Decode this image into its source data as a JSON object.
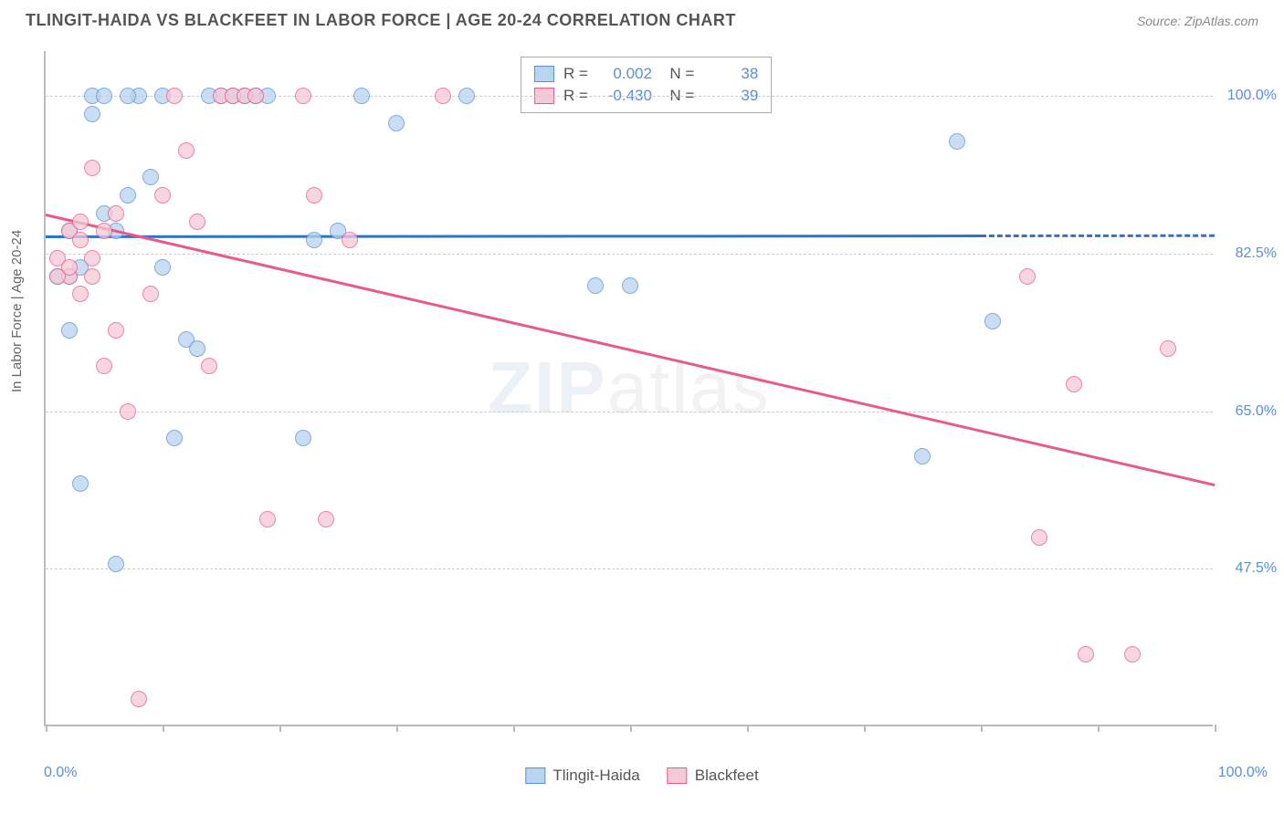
{
  "title": "TLINGIT-HAIDA VS BLACKFEET IN LABOR FORCE | AGE 20-24 CORRELATION CHART",
  "source": "Source: ZipAtlas.com",
  "yaxis_title": "In Labor Force | Age 20-24",
  "watermark": {
    "bold": "ZIP",
    "light": "atlas"
  },
  "chart": {
    "type": "scatter",
    "xlim": [
      0,
      100
    ],
    "ylim": [
      30,
      105
    ],
    "x_ticks": [
      0,
      10,
      20,
      30,
      40,
      50,
      60,
      70,
      80,
      90,
      100
    ],
    "x_min_label": "0.0%",
    "x_max_label": "100.0%",
    "y_gridlines": [
      47.5,
      65.0,
      82.5,
      100.0
    ],
    "y_tick_labels": [
      "47.5%",
      "65.0%",
      "82.5%",
      "100.0%"
    ],
    "grid_color": "#cccccc",
    "background_color": "#ffffff",
    "marker_radius": 9,
    "marker_opacity": 0.75,
    "series": [
      {
        "name": "Tlingit-Haida",
        "fill": "#b9d4f0",
        "stroke": "#5a8fd6",
        "R": "0.002",
        "N": "38",
        "trend": {
          "x1": 0,
          "y1": 84.5,
          "x2": 80,
          "y2": 84.6,
          "dash_to_x": 100,
          "color": "#2f74c7",
          "width": 3
        },
        "points": [
          {
            "x": 1,
            "y": 80
          },
          {
            "x": 2,
            "y": 85
          },
          {
            "x": 2,
            "y": 74
          },
          {
            "x": 3,
            "y": 57
          },
          {
            "x": 4,
            "y": 100
          },
          {
            "x": 4,
            "y": 98
          },
          {
            "x": 5,
            "y": 87
          },
          {
            "x": 6,
            "y": 48
          },
          {
            "x": 7,
            "y": 89
          },
          {
            "x": 8,
            "y": 100
          },
          {
            "x": 9,
            "y": 91
          },
          {
            "x": 10,
            "y": 100
          },
          {
            "x": 10,
            "y": 81
          },
          {
            "x": 11,
            "y": 62
          },
          {
            "x": 12,
            "y": 73
          },
          {
            "x": 13,
            "y": 72
          },
          {
            "x": 15,
            "y": 100
          },
          {
            "x": 16,
            "y": 100
          },
          {
            "x": 18,
            "y": 100
          },
          {
            "x": 19,
            "y": 100
          },
          {
            "x": 22,
            "y": 62
          },
          {
            "x": 23,
            "y": 84
          },
          {
            "x": 25,
            "y": 85
          },
          {
            "x": 27,
            "y": 100
          },
          {
            "x": 30,
            "y": 97
          },
          {
            "x": 47,
            "y": 79
          },
          {
            "x": 50,
            "y": 79
          },
          {
            "x": 75,
            "y": 60
          },
          {
            "x": 78,
            "y": 95
          },
          {
            "x": 81,
            "y": 75
          },
          {
            "x": 2,
            "y": 80
          },
          {
            "x": 3,
            "y": 81
          },
          {
            "x": 5,
            "y": 100
          },
          {
            "x": 6,
            "y": 85
          },
          {
            "x": 14,
            "y": 100
          },
          {
            "x": 17,
            "y": 100
          },
          {
            "x": 36,
            "y": 100
          },
          {
            "x": 7,
            "y": 100
          }
        ]
      },
      {
        "name": "Blackfeet",
        "fill": "#f6c9d6",
        "stroke": "#e85a8a",
        "R": "-0.430",
        "N": "39",
        "trend": {
          "x1": 0,
          "y1": 87,
          "x2": 100,
          "y2": 57,
          "color": "#e85a8a",
          "width": 3
        },
        "points": [
          {
            "x": 1,
            "y": 82
          },
          {
            "x": 2,
            "y": 85
          },
          {
            "x": 2,
            "y": 80
          },
          {
            "x": 3,
            "y": 86
          },
          {
            "x": 3,
            "y": 78
          },
          {
            "x": 4,
            "y": 92
          },
          {
            "x": 4,
            "y": 82
          },
          {
            "x": 5,
            "y": 70
          },
          {
            "x": 5,
            "y": 85
          },
          {
            "x": 6,
            "y": 74
          },
          {
            "x": 7,
            "y": 65
          },
          {
            "x": 8,
            "y": 33
          },
          {
            "x": 9,
            "y": 78
          },
          {
            "x": 10,
            "y": 89
          },
          {
            "x": 11,
            "y": 100
          },
          {
            "x": 12,
            "y": 94
          },
          {
            "x": 13,
            "y": 86
          },
          {
            "x": 14,
            "y": 70
          },
          {
            "x": 15,
            "y": 100
          },
          {
            "x": 16,
            "y": 100
          },
          {
            "x": 17,
            "y": 100
          },
          {
            "x": 18,
            "y": 100
          },
          {
            "x": 19,
            "y": 53
          },
          {
            "x": 22,
            "y": 100
          },
          {
            "x": 23,
            "y": 89
          },
          {
            "x": 24,
            "y": 53
          },
          {
            "x": 26,
            "y": 84
          },
          {
            "x": 34,
            "y": 100
          },
          {
            "x": 84,
            "y": 80
          },
          {
            "x": 85,
            "y": 51
          },
          {
            "x": 88,
            "y": 68
          },
          {
            "x": 89,
            "y": 38
          },
          {
            "x": 93,
            "y": 38
          },
          {
            "x": 96,
            "y": 72
          },
          {
            "x": 2,
            "y": 81
          },
          {
            "x": 3,
            "y": 84
          },
          {
            "x": 6,
            "y": 87
          },
          {
            "x": 1,
            "y": 80
          },
          {
            "x": 4,
            "y": 80
          }
        ]
      }
    ]
  },
  "legend": {
    "stats_label_R": "R =",
    "stats_label_N": "N =",
    "series_labels": [
      "Tlingit-Haida",
      "Blackfeet"
    ]
  }
}
